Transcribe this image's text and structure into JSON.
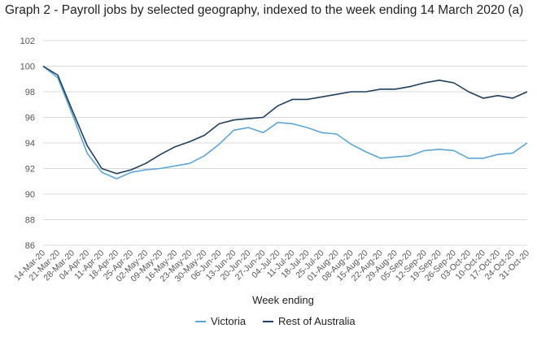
{
  "chart_data": {
    "type": "line",
    "title": "Graph 2 - Payroll jobs by selected geography, indexed to the week ending 14 March 2020 (a)",
    "xlabel": "Week ending",
    "ylabel": "",
    "ylim": [
      86,
      102
    ],
    "yticks": [
      86,
      88,
      90,
      92,
      94,
      96,
      98,
      100,
      102
    ],
    "grid": true,
    "legend_position": "bottom-center",
    "categories": [
      "14-Mar-20",
      "21-Mar-20",
      "28-Mar-20",
      "04-Apr-20",
      "11-Apr-20",
      "18-Apr-20",
      "25-Apr-20",
      "02-May-20",
      "09-May-20",
      "16-May-20",
      "23-May-20",
      "30-May-20",
      "06-Jun-20",
      "13-Jun-20",
      "20-Jun-20",
      "27-Jun-20",
      "04-Jul-20",
      "11-Jul-20",
      "18-Jul-20",
      "25-Jul-20",
      "01-Aug-20",
      "08-Aug-20",
      "15-Aug-20",
      "22-Aug-20",
      "29-Aug-20",
      "05-Sep-20",
      "12-Sep-20",
      "19-Sep-20",
      "26-Sep-20",
      "03-Oct-20",
      "10-Oct-20",
      "17-Oct-20",
      "24-Oct-20",
      "31-Oct-20"
    ],
    "series": [
      {
        "name": "Victoria",
        "color": "#5ba6d6",
        "values": [
          100.0,
          99.1,
          96.2,
          93.2,
          91.7,
          91.2,
          91.7,
          91.9,
          92.0,
          92.2,
          92.4,
          93.0,
          93.9,
          95.0,
          95.2,
          94.8,
          95.6,
          95.5,
          95.2,
          94.8,
          94.7,
          93.9,
          93.3,
          92.8,
          92.9,
          93.0,
          93.4,
          93.5,
          93.4,
          92.8,
          92.8,
          93.1,
          93.2,
          94.0
        ]
      },
      {
        "name": "Rest of Australia",
        "color": "#1f3f5c",
        "values": [
          100.0,
          99.3,
          96.5,
          93.8,
          92.0,
          91.6,
          91.9,
          92.4,
          93.1,
          93.7,
          94.1,
          94.6,
          95.5,
          95.8,
          95.9,
          96.0,
          96.9,
          97.4,
          97.4,
          97.6,
          97.8,
          98.0,
          98.0,
          98.2,
          98.2,
          98.4,
          98.7,
          98.9,
          98.7,
          98.0,
          97.5,
          97.7,
          97.5,
          98.0
        ]
      }
    ]
  }
}
